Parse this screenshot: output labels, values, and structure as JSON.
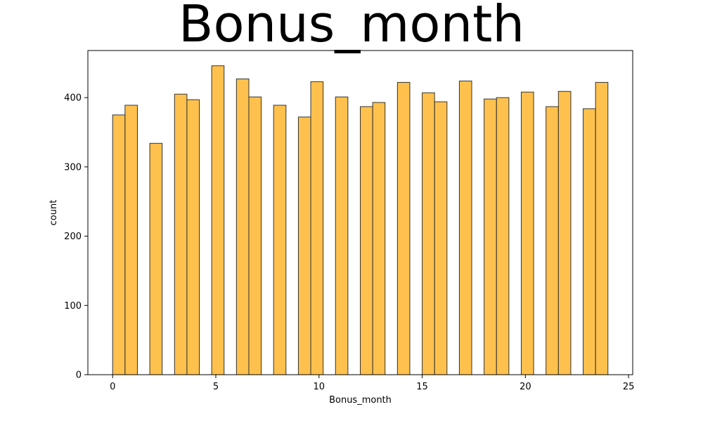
{
  "chart_data": {
    "type": "bar",
    "title": "Bonus_month",
    "xlabel": "Bonus_month",
    "ylabel": "count",
    "xlim": [
      -1.2,
      25.2
    ],
    "ylim": [
      0,
      468
    ],
    "xticks": [
      0,
      5,
      10,
      15,
      20,
      25
    ],
    "yticks": [
      0,
      100,
      200,
      300,
      400
    ],
    "bar_color": "#ffb120",
    "bar_alpha": 0.8,
    "edge_color": "#333333",
    "grid": false,
    "bars": [
      {
        "x0": 0.0,
        "x1": 0.6,
        "value": 375
      },
      {
        "x0": 0.6,
        "x1": 1.2,
        "value": 389
      },
      {
        "x0": 1.8,
        "x1": 2.4,
        "value": 334
      },
      {
        "x0": 3.0,
        "x1": 3.6,
        "value": 405
      },
      {
        "x0": 3.6,
        "x1": 4.2,
        "value": 397
      },
      {
        "x0": 4.8,
        "x1": 5.4,
        "value": 446
      },
      {
        "x0": 6.0,
        "x1": 6.6,
        "value": 427
      },
      {
        "x0": 6.6,
        "x1": 7.2,
        "value": 401
      },
      {
        "x0": 7.8,
        "x1": 8.4,
        "value": 389
      },
      {
        "x0": 9.0,
        "x1": 9.6,
        "value": 372
      },
      {
        "x0": 9.6,
        "x1": 10.2,
        "value": 423
      },
      {
        "x0": 10.8,
        "x1": 11.4,
        "value": 401
      },
      {
        "x0": 12.0,
        "x1": 12.6,
        "value": 387
      },
      {
        "x0": 12.6,
        "x1": 13.2,
        "value": 393
      },
      {
        "x0": 13.8,
        "x1": 14.4,
        "value": 422
      },
      {
        "x0": 15.0,
        "x1": 15.6,
        "value": 407
      },
      {
        "x0": 15.6,
        "x1": 16.2,
        "value": 394
      },
      {
        "x0": 16.8,
        "x1": 17.4,
        "value": 424
      },
      {
        "x0": 18.0,
        "x1": 18.6,
        "value": 398
      },
      {
        "x0": 18.6,
        "x1": 19.2,
        "value": 400
      },
      {
        "x0": 19.8,
        "x1": 20.4,
        "value": 408
      },
      {
        "x0": 21.0,
        "x1": 21.6,
        "value": 387
      },
      {
        "x0": 21.6,
        "x1": 22.2,
        "value": 409
      },
      {
        "x0": 22.8,
        "x1": 23.4,
        "value": 384
      },
      {
        "x0": 23.4,
        "x1": 24.0,
        "value": 422
      }
    ]
  }
}
